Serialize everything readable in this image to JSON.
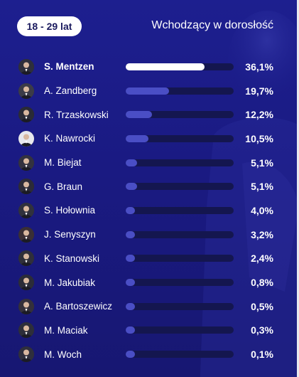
{
  "header": {
    "age_badge": "18 - 29 lat",
    "title": "Wchodzący w dorosłość"
  },
  "colors": {
    "background": "#1d1f8f",
    "bar_track": "#14164f",
    "bar_fill": "#4a4ec5",
    "bar_fill_top": "#ffffff",
    "text": "#ffffff"
  },
  "rows": [
    {
      "name": "S. Mentzen",
      "value": "36,1%",
      "share": 36.1,
      "highlight": true
    },
    {
      "name": "A. Zandberg",
      "value": "19,7%",
      "share": 19.7,
      "highlight": false
    },
    {
      "name": "R. Trzaskowski",
      "value": "12,2%",
      "share": 12.2,
      "highlight": false
    },
    {
      "name": "K. Nawrocki",
      "value": "10,5%",
      "share": 10.5,
      "highlight": false
    },
    {
      "name": "M. Biejat",
      "value": "5,1%",
      "share": 5.1,
      "highlight": false
    },
    {
      "name": "G. Braun",
      "value": "5,1%",
      "share": 5.1,
      "highlight": false
    },
    {
      "name": "S. Hołownia",
      "value": "4,0%",
      "share": 4.0,
      "highlight": false
    },
    {
      "name": "J. Senyszyn",
      "value": "3,2%",
      "share": 3.2,
      "highlight": false
    },
    {
      "name": "K. Stanowski",
      "value": "2,4%",
      "share": 2.4,
      "highlight": false
    },
    {
      "name": "M. Jakubiak",
      "value": "0,8%",
      "share": 0.8,
      "highlight": false
    },
    {
      "name": "A. Bartoszewicz",
      "value": "0,5%",
      "share": 0.5,
      "highlight": false
    },
    {
      "name": "M. Maciak",
      "value": "0,3%",
      "share": 0.3,
      "highlight": false
    },
    {
      "name": "M. Woch",
      "value": "0,1%",
      "share": 0.1,
      "highlight": false
    }
  ]
}
